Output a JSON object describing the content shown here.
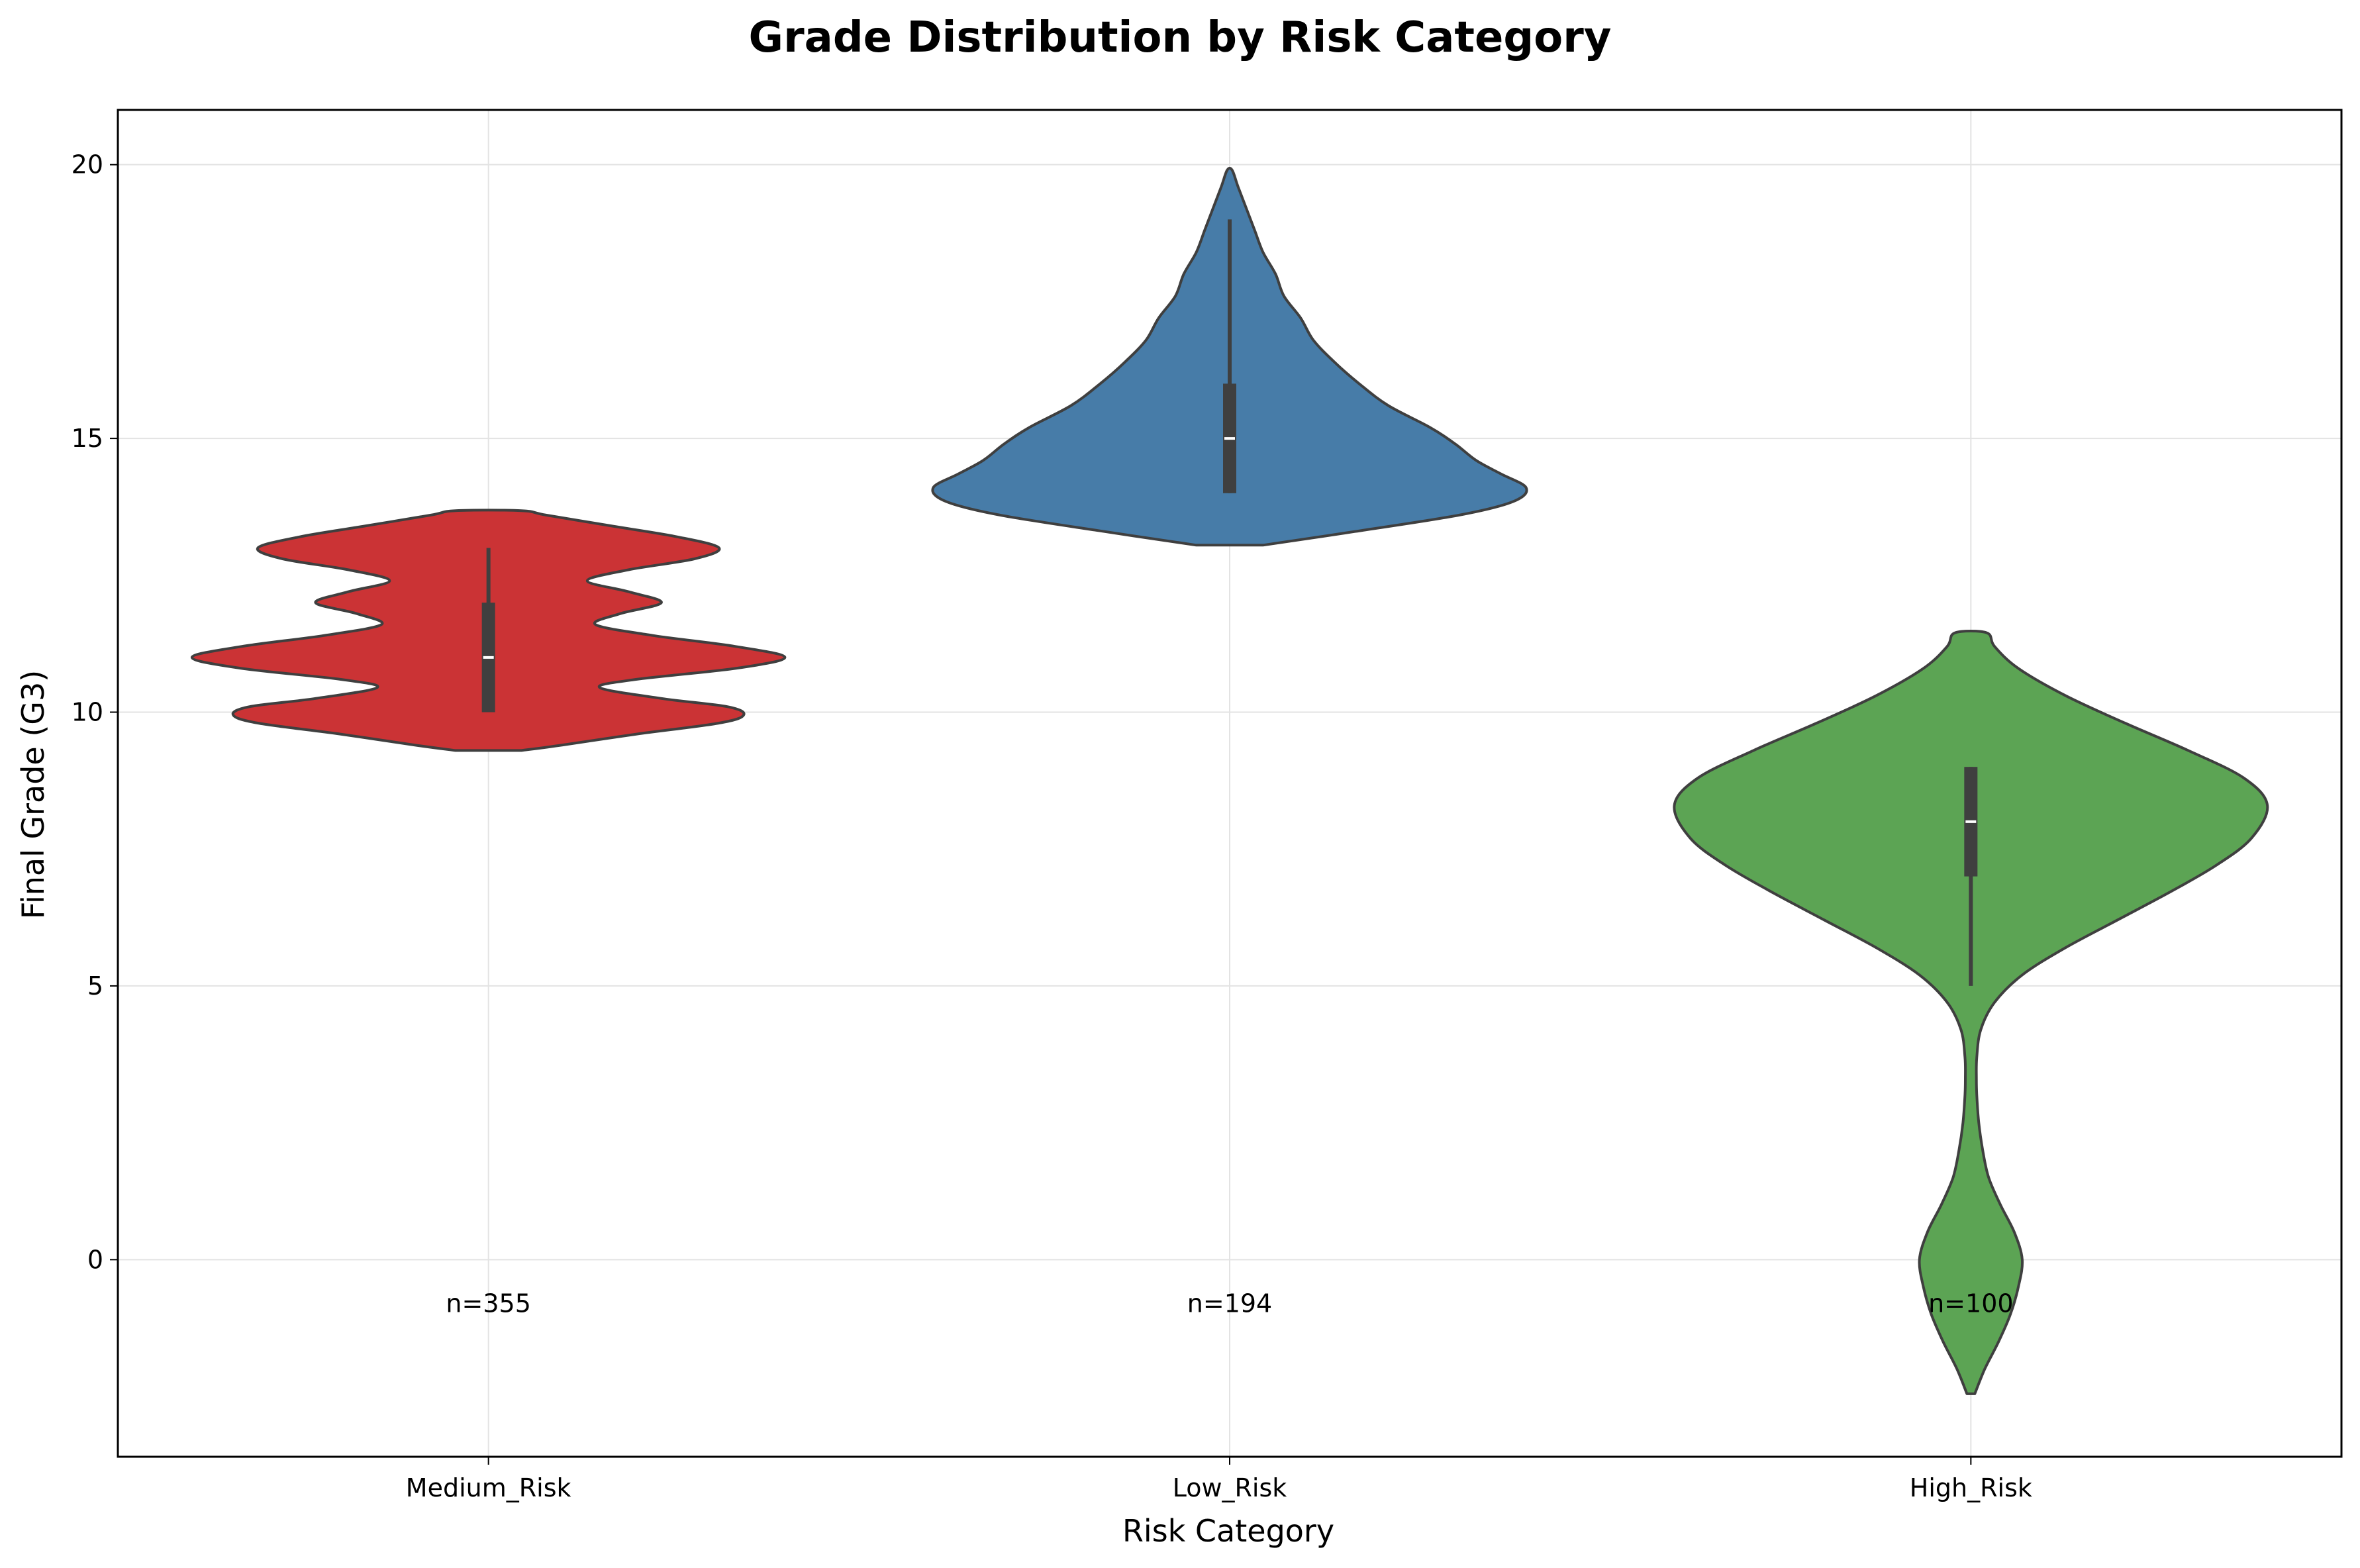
{
  "chart_data": {
    "type": "violin",
    "title": "Grade Distribution by Risk Category",
    "xlabel": "Risk Category",
    "ylabel": "Final Grade (G3)",
    "categories": [
      "Medium_Risk",
      "Low_Risk",
      "High_Risk"
    ],
    "ylim": [
      -3.6,
      21
    ],
    "yticks": [
      0,
      5,
      10,
      15,
      20
    ],
    "grid": true,
    "series": [
      {
        "category": "Medium_Risk",
        "color": "#cb3335",
        "count_label": "n=355",
        "count_label_y": -0.8,
        "n": 355,
        "median": 11,
        "q1": 10,
        "q3": 12,
        "whisker_low": 10,
        "whisker_high": 13,
        "density": [
          [
            9.3,
            0.08
          ],
          [
            9.4,
            0.18
          ],
          [
            9.6,
            0.36
          ],
          [
            9.8,
            0.56
          ],
          [
            9.95,
            0.62
          ],
          [
            10.1,
            0.58
          ],
          [
            10.25,
            0.42
          ],
          [
            10.45,
            0.27
          ],
          [
            10.6,
            0.36
          ],
          [
            10.8,
            0.6
          ],
          [
            11.0,
            0.72
          ],
          [
            11.2,
            0.6
          ],
          [
            11.4,
            0.4
          ],
          [
            11.6,
            0.26
          ],
          [
            11.8,
            0.32
          ],
          [
            12.0,
            0.42
          ],
          [
            12.2,
            0.34
          ],
          [
            12.4,
            0.24
          ],
          [
            12.6,
            0.34
          ],
          [
            12.8,
            0.5
          ],
          [
            13.0,
            0.56
          ],
          [
            13.2,
            0.46
          ],
          [
            13.4,
            0.3
          ],
          [
            13.6,
            0.14
          ],
          [
            13.68,
            0.08
          ]
        ]
      },
      {
        "category": "Low_Risk",
        "color": "#477ca8",
        "count_label": "n=194",
        "count_label_y": -0.8,
        "n": 194,
        "median": 15,
        "q1": 14,
        "q3": 16,
        "whisker_low": 14,
        "whisker_high": 19,
        "density": [
          [
            13.05,
            0.08
          ],
          [
            13.3,
            0.3
          ],
          [
            13.6,
            0.55
          ],
          [
            13.85,
            0.68
          ],
          [
            14.1,
            0.71
          ],
          [
            14.35,
            0.65
          ],
          [
            14.6,
            0.59
          ],
          [
            14.9,
            0.54
          ],
          [
            15.2,
            0.48
          ],
          [
            15.6,
            0.38
          ],
          [
            16.0,
            0.31
          ],
          [
            16.4,
            0.25
          ],
          [
            16.8,
            0.2
          ],
          [
            17.2,
            0.17
          ],
          [
            17.6,
            0.13
          ],
          [
            18.0,
            0.11
          ],
          [
            18.4,
            0.08
          ],
          [
            18.8,
            0.06
          ],
          [
            19.2,
            0.04
          ],
          [
            19.6,
            0.02
          ],
          [
            19.9,
            0.006
          ]
        ]
      },
      {
        "category": "High_Risk",
        "color": "#5ca454",
        "count_label": "n=100",
        "count_label_y": -0.8,
        "n": 100,
        "median": 8,
        "q1": 7,
        "q3": 9,
        "whisker_low": 5,
        "whisker_high": 9,
        "density": [
          [
            -2.45,
            0.01
          ],
          [
            -2.0,
            0.035
          ],
          [
            -1.5,
            0.07
          ],
          [
            -1.0,
            0.1
          ],
          [
            -0.5,
            0.12
          ],
          [
            0.0,
            0.13
          ],
          [
            0.5,
            0.11
          ],
          [
            1.0,
            0.075
          ],
          [
            1.5,
            0.045
          ],
          [
            2.0,
            0.03
          ],
          [
            2.5,
            0.02
          ],
          [
            3.0,
            0.015
          ],
          [
            3.3,
            0.014
          ],
          [
            3.7,
            0.015
          ],
          [
            4.2,
            0.025
          ],
          [
            4.7,
            0.06
          ],
          [
            5.2,
            0.13
          ],
          [
            5.7,
            0.24
          ],
          [
            6.2,
            0.37
          ],
          [
            6.7,
            0.5
          ],
          [
            7.2,
            0.62
          ],
          [
            7.7,
            0.71
          ],
          [
            8.3,
            0.75
          ],
          [
            8.8,
            0.69
          ],
          [
            9.3,
            0.55
          ],
          [
            9.8,
            0.39
          ],
          [
            10.3,
            0.24
          ],
          [
            10.8,
            0.12
          ],
          [
            11.2,
            0.06
          ],
          [
            11.45,
            0.04
          ]
        ]
      }
    ]
  }
}
